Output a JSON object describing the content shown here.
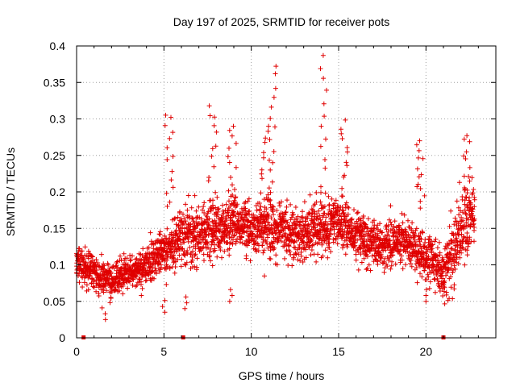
{
  "chart_data": {
    "type": "scatter",
    "title": "Day 197 of 2025, SRMTID for receiver pots",
    "xlabel": "GPS time / hours",
    "ylabel": "SRMTID / TECUs",
    "xlim": [
      0,
      24
    ],
    "ylim": [
      0,
      0.4
    ],
    "xticks": [
      0,
      5,
      10,
      15,
      20
    ],
    "xtick_labels": [
      "0",
      "5",
      "10",
      "15",
      "20"
    ],
    "yticks": [
      0,
      0.05,
      0.1,
      0.15,
      0.2,
      0.25,
      0.3,
      0.35,
      0.4
    ],
    "ytick_labels": [
      "0",
      "0.05",
      "0.1",
      "0.15",
      "0.2",
      "0.25",
      "0.3",
      "0.35",
      "0.4"
    ],
    "grid": true,
    "marker": "+",
    "color": "#e00000",
    "data_range_hours": [
      0,
      22.8
    ],
    "baseline_markers_x": [
      0.4,
      6.1,
      21.0
    ],
    "profile": {
      "x": [
        0,
        1,
        2,
        3,
        4,
        5,
        6,
        7,
        8,
        9,
        10,
        11,
        12,
        13,
        14,
        15,
        16,
        17,
        18,
        19,
        20,
        21,
        22,
        22.8
      ],
      "median": [
        0.1,
        0.09,
        0.08,
        0.09,
        0.1,
        0.12,
        0.14,
        0.14,
        0.15,
        0.16,
        0.15,
        0.15,
        0.14,
        0.14,
        0.15,
        0.16,
        0.14,
        0.13,
        0.13,
        0.13,
        0.11,
        0.09,
        0.15,
        0.17
      ],
      "spread": [
        0.03,
        0.03,
        0.03,
        0.03,
        0.03,
        0.04,
        0.05,
        0.05,
        0.05,
        0.05,
        0.04,
        0.05,
        0.05,
        0.04,
        0.06,
        0.05,
        0.04,
        0.04,
        0.04,
        0.04,
        0.04,
        0.04,
        0.06,
        0.06
      ]
    },
    "peaks": [
      {
        "x": 5.3,
        "y": 0.31
      },
      {
        "x": 7.8,
        "y": 0.32
      },
      {
        "x": 8.9,
        "y": 0.29
      },
      {
        "x": 10.8,
        "y": 0.29
      },
      {
        "x": 11.3,
        "y": 0.375
      },
      {
        "x": 14.2,
        "y": 0.387
      },
      {
        "x": 15.3,
        "y": 0.3
      },
      {
        "x": 19.7,
        "y": 0.27
      },
      {
        "x": 22.4,
        "y": 0.28
      }
    ],
    "minima": [
      {
        "x": 1.6,
        "y": 0.025
      },
      {
        "x": 5.0,
        "y": 0.035
      },
      {
        "x": 6.2,
        "y": 0.04
      },
      {
        "x": 8.8,
        "y": 0.05
      },
      {
        "x": 20.0,
        "y": 0.05
      }
    ]
  }
}
